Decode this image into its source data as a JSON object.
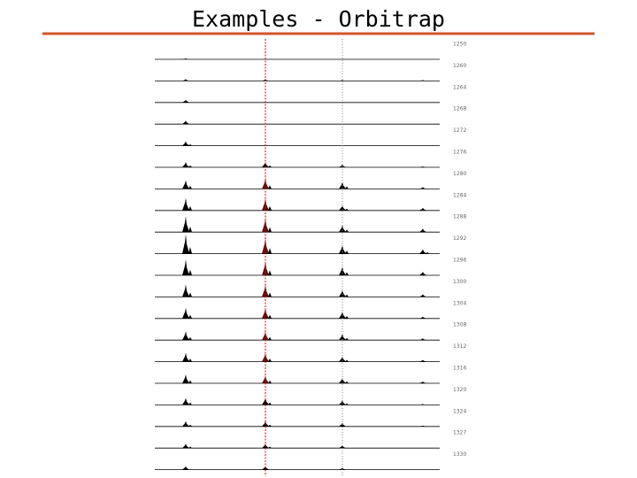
{
  "title": "Examples - Orbitrap",
  "scan_labels": [
    "1250",
    "1260",
    "1264",
    "1268",
    "1272",
    "1276",
    "1280",
    "1284",
    "1288",
    "1292",
    "1296",
    "1300",
    "1304",
    "1308",
    "1312",
    "1316",
    "1320",
    "1324",
    "1327",
    "1330"
  ]
}
